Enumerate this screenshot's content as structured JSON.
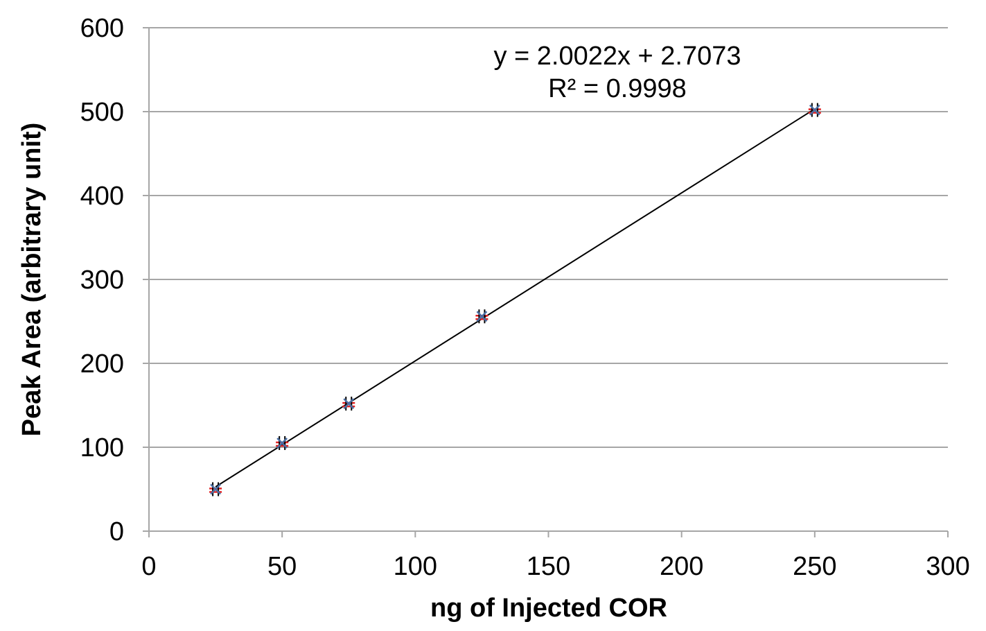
{
  "chart_data": {
    "type": "scatter",
    "title": "",
    "xlabel": "ng of Injected COR",
    "ylabel": "Peak Area (arbitrary unit)",
    "xlim": [
      0,
      300
    ],
    "ylim": [
      0,
      600
    ],
    "xticks": [
      0,
      50,
      100,
      150,
      200,
      250,
      300
    ],
    "yticks": [
      0,
      100,
      200,
      300,
      400,
      500,
      600
    ],
    "grid": "horizontal",
    "legend": "none",
    "series": [
      {
        "x": [
          25,
          50,
          75,
          125,
          250
        ],
        "y": [
          50,
          105,
          152,
          256,
          502
        ],
        "marker_color": "#4a6fa5",
        "error_bar_color": "#e02020"
      }
    ],
    "trendline": {
      "slope": 2.0022,
      "intercept": 2.7073,
      "x_range": [
        25,
        250
      ],
      "color": "#000000",
      "equation": "y = 2.0022x + 2.7073",
      "r_squared": "R² = 0.9998"
    }
  }
}
